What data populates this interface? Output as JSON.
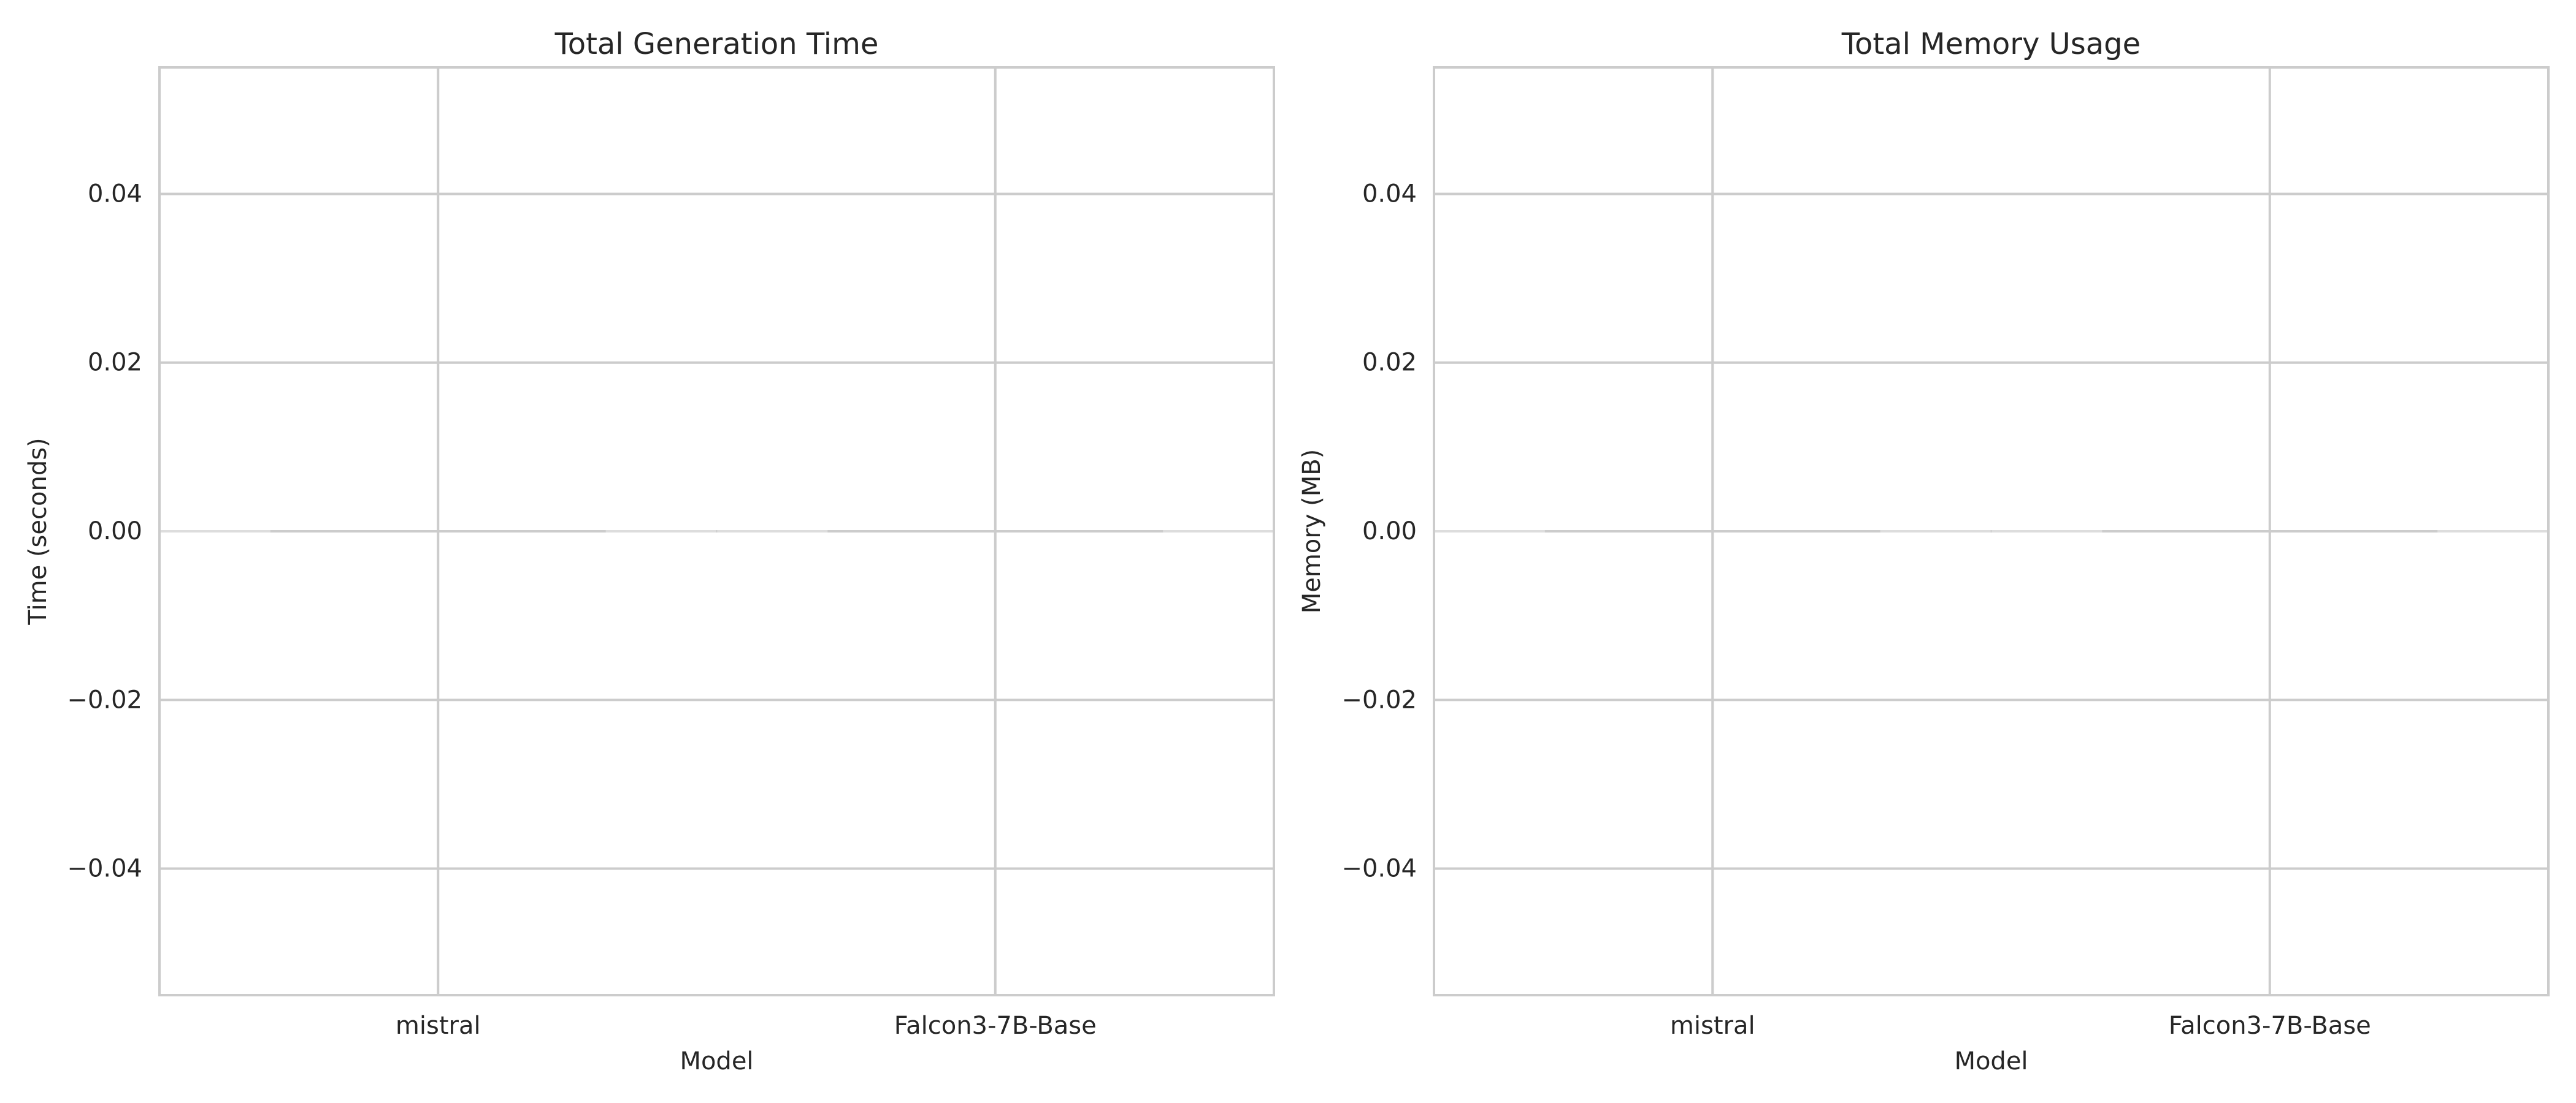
{
  "chart_data": [
    {
      "type": "bar",
      "title": "Total Generation Time",
      "xlabel": "Model",
      "ylabel": "Time (seconds)",
      "categories": [
        "mistral",
        "Falcon3-7B-Base"
      ],
      "values": [
        0,
        0
      ],
      "ylim": [
        -0.055,
        0.055
      ],
      "yticks": [
        -0.04,
        -0.02,
        0.0,
        0.02,
        0.04
      ],
      "ytick_labels": [
        "−0.04",
        "−0.02",
        "0.00",
        "0.02",
        "0.04"
      ],
      "grid": true,
      "style": "seaborn-whitegrid"
    },
    {
      "type": "bar",
      "title": "Total Memory Usage",
      "xlabel": "Model",
      "ylabel": "Memory (MB)",
      "categories": [
        "mistral",
        "Falcon3-7B-Base"
      ],
      "values": [
        0,
        0
      ],
      "ylim": [
        -0.055,
        0.055
      ],
      "yticks": [
        -0.04,
        -0.02,
        0.0,
        0.02,
        0.04
      ],
      "ytick_labels": [
        "−0.04",
        "−0.02",
        "0.00",
        "0.02",
        "0.04"
      ],
      "grid": true,
      "style": "seaborn-whitegrid"
    }
  ]
}
